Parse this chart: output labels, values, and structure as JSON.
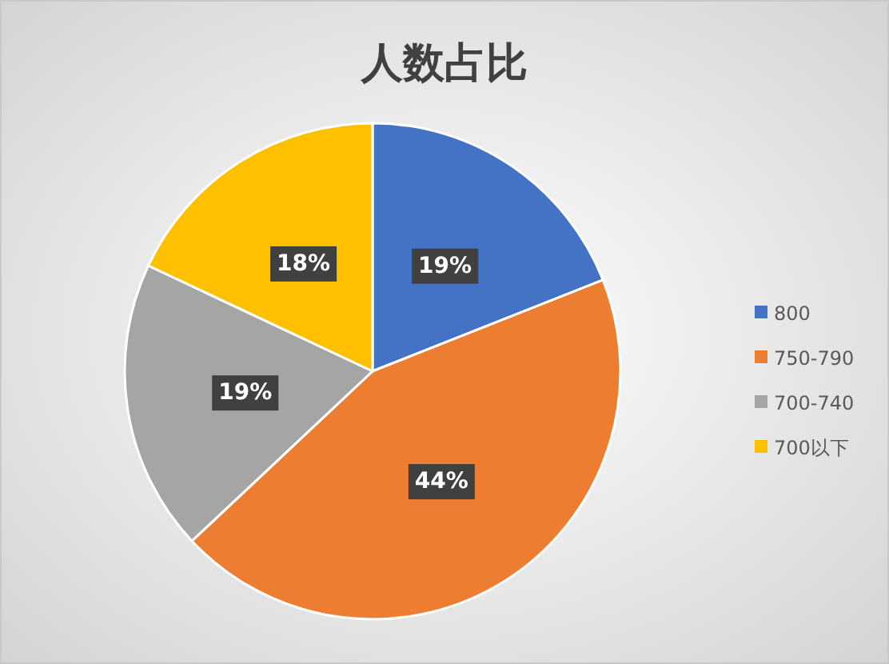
{
  "chart_data": {
    "type": "pie",
    "title": "人数占比",
    "categories": [
      "800",
      "750-790",
      "700-740",
      "700以下"
    ],
    "values": [
      19,
      44,
      19,
      18
    ],
    "colors": [
      "#4472c4",
      "#ed7d31",
      "#a5a5a5",
      "#ffc000"
    ],
    "value_labels": [
      "19%",
      "44%",
      "19%",
      "18%"
    ],
    "legend": "right"
  }
}
